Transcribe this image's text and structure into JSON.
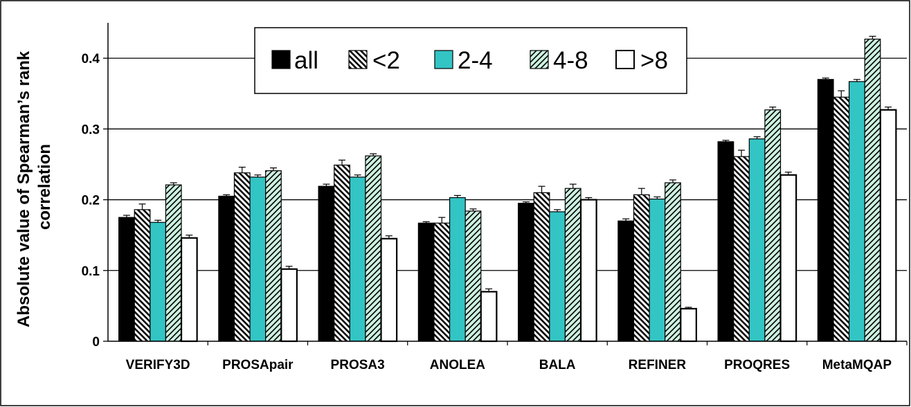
{
  "chart_data": {
    "type": "bar",
    "title": "",
    "xlabel": "",
    "ylabel": "Absolute value of Spearman's rank correlation",
    "ylabel_lines": [
      "Absolute value of Spearman’s rank",
      "correlation"
    ],
    "ylim": [
      0,
      0.45
    ],
    "yticks": [
      0,
      0.1,
      0.2,
      0.3,
      0.4
    ],
    "ytick_labels": [
      "0",
      "0.1",
      "0.2",
      "0.3",
      "0.4"
    ],
    "grid": true,
    "legend_position": "top-center",
    "categories": [
      "VERIFY3D",
      "PROSApair",
      "PROSA3",
      "ANOLEA",
      "BALA",
      "REFINER",
      "PROQRES",
      "MetaMQAP"
    ],
    "series": [
      {
        "name": "all",
        "style": "solid-black",
        "color": "#000000",
        "values": [
          0.175,
          0.205,
          0.219,
          0.167,
          0.195,
          0.17,
          0.282,
          0.37
        ],
        "errors": [
          0.003,
          0.002,
          0.003,
          0.002,
          0.002,
          0.003,
          0.002,
          0.002
        ]
      },
      {
        "name": "<2",
        "style": "hatch-back",
        "color": "#000000",
        "values": [
          0.186,
          0.238,
          0.249,
          0.167,
          0.21,
          0.207,
          0.261,
          0.345
        ],
        "errors": [
          0.008,
          0.008,
          0.007,
          0.008,
          0.009,
          0.009,
          0.009,
          0.009
        ]
      },
      {
        "name": "2-4",
        "style": "solid-cyan",
        "color": "#33c4c4",
        "values": [
          0.168,
          0.232,
          0.232,
          0.203,
          0.183,
          0.201,
          0.286,
          0.367
        ],
        "errors": [
          0.003,
          0.003,
          0.003,
          0.003,
          0.003,
          0.003,
          0.003,
          0.003
        ]
      },
      {
        "name": "4-8",
        "style": "hatch-forward",
        "color": "#ccf0e0",
        "values": [
          0.221,
          0.241,
          0.262,
          0.184,
          0.216,
          0.224,
          0.327,
          0.427
        ],
        "errors": [
          0.003,
          0.004,
          0.003,
          0.003,
          0.006,
          0.004,
          0.004,
          0.004
        ]
      },
      {
        "name": ">8",
        "style": "solid-white",
        "color": "#ffffff",
        "values": [
          0.146,
          0.102,
          0.145,
          0.07,
          0.2,
          0.046,
          0.235,
          0.327
        ],
        "errors": [
          0.004,
          0.004,
          0.004,
          0.004,
          0.003,
          0.002,
          0.004,
          0.004
        ]
      }
    ]
  }
}
